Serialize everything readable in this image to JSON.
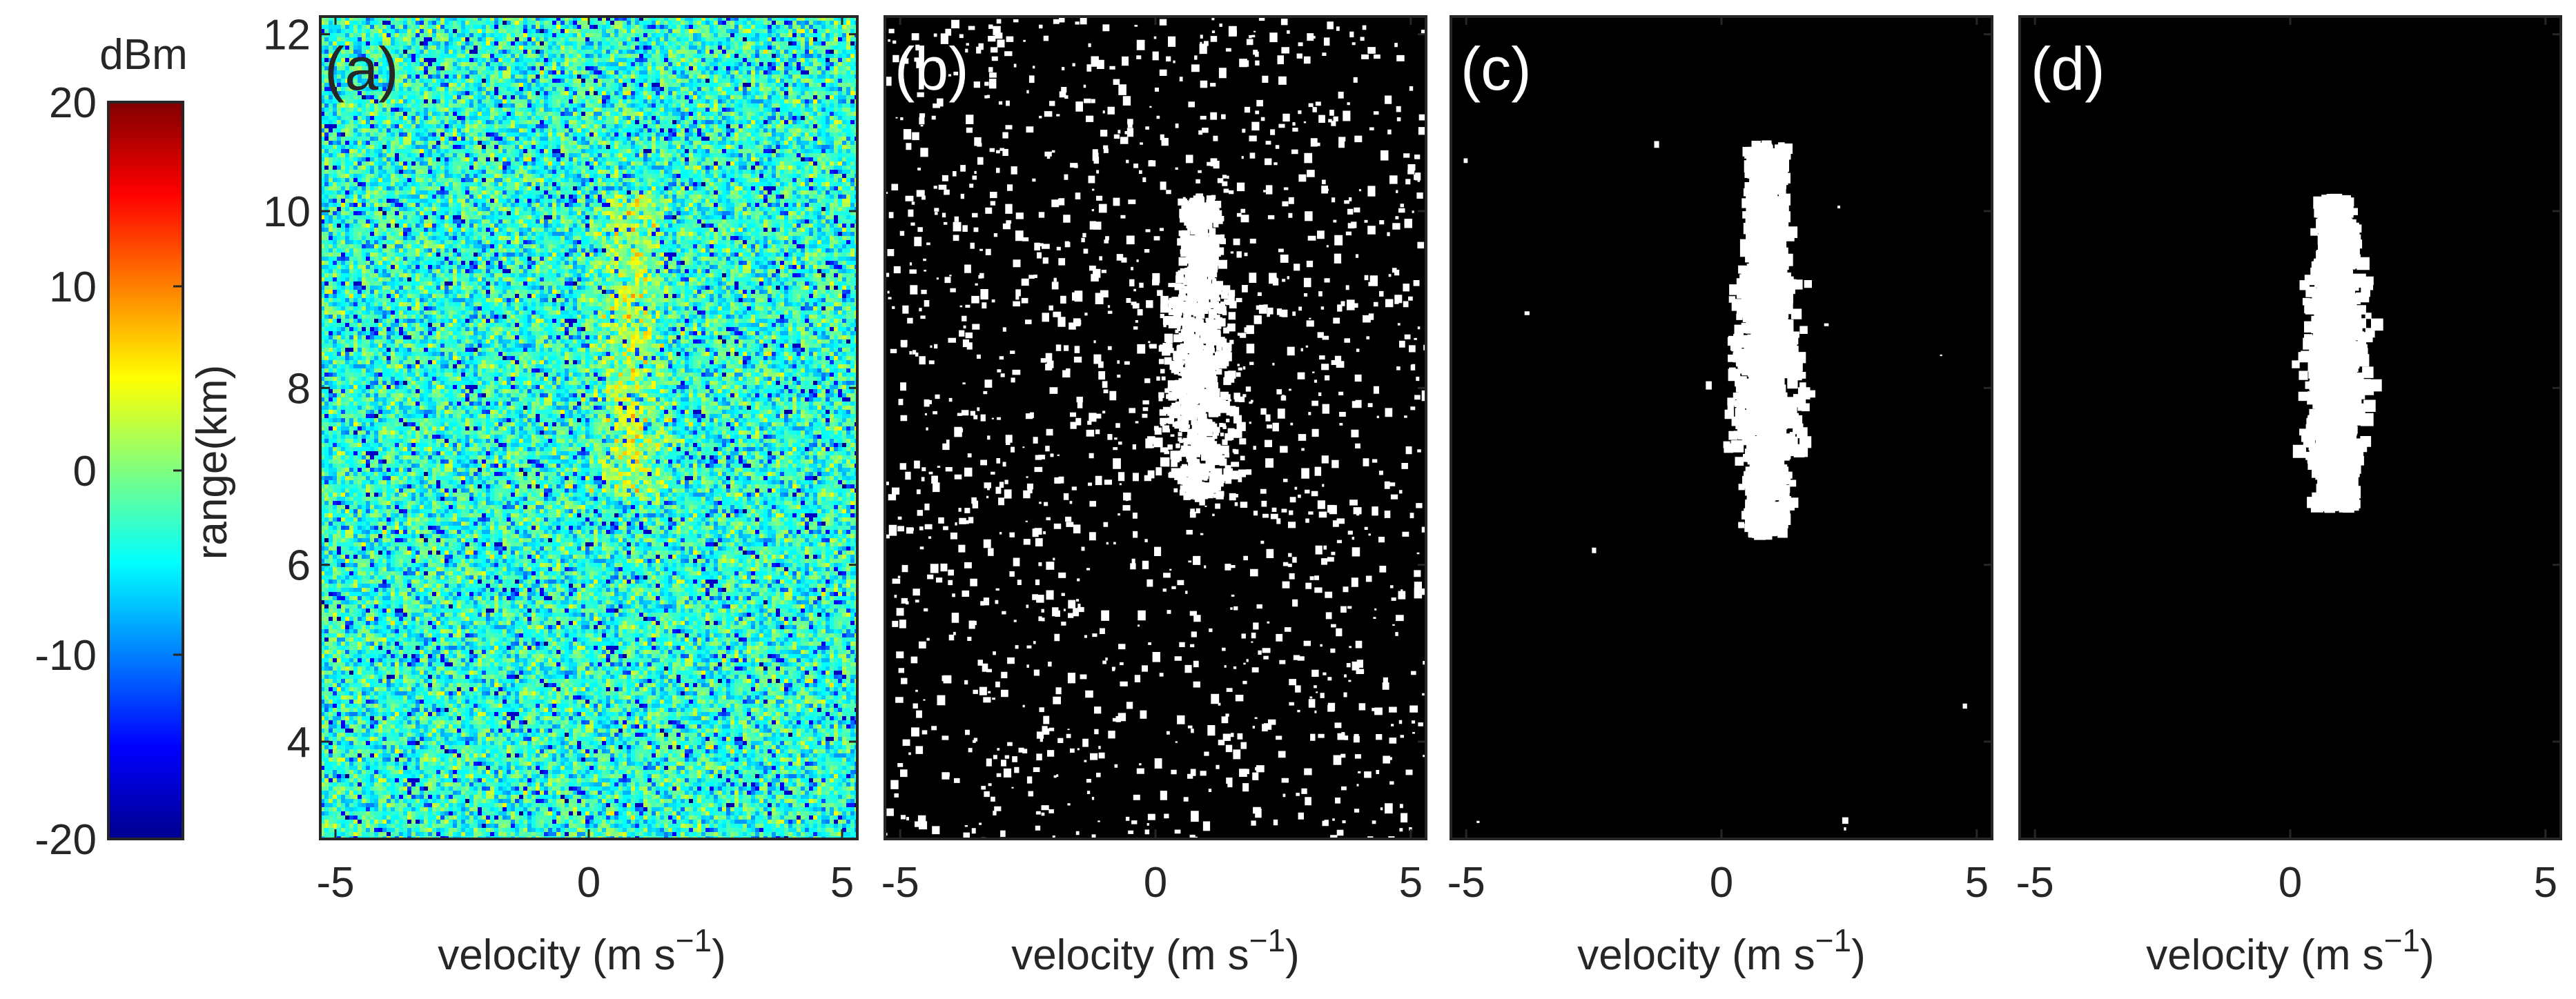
{
  "colorbar": {
    "label": "dBm",
    "ticks": [
      20,
      10,
      0,
      -10,
      -20
    ],
    "tick_labels": [
      "20",
      "10",
      "0",
      "-10",
      "-20"
    ],
    "range": [
      -20,
      20
    ],
    "colormap": "jet"
  },
  "y_axis": {
    "label": "range(km)",
    "ticks": [
      4,
      6,
      8,
      10,
      12
    ],
    "tick_labels": [
      "4",
      "6",
      "8",
      "10",
      "12"
    ],
    "range": [
      2.9,
      12.2
    ]
  },
  "x_axis": {
    "label_main": "velocity (m s",
    "label_exp": "−1",
    "label_close": ")",
    "ticks": [
      -5,
      0,
      5
    ],
    "tick_labels": [
      "-5",
      "0",
      "5"
    ],
    "range": [
      -5.3,
      5.3
    ]
  },
  "chart_data": [
    {
      "type": "heatmap",
      "panel": "(a)",
      "description_values": {
        "background_level_dBm": -3,
        "target_level_dBm": 3,
        "target_velocity_center": 0.8,
        "target_range_extent_km": [
          6.8,
          10.2
        ]
      },
      "background": "#40c8a0"
    },
    {
      "type": "heatmap",
      "panel": "(b)",
      "binary": true,
      "target_velocity_center": 0.8,
      "target_range_extent_km": [
        6.8,
        10.2
      ],
      "background": "#000000",
      "foreground": "#ffffff"
    },
    {
      "type": "heatmap",
      "panel": "(c)",
      "binary": true,
      "target_velocity_center": 0.8,
      "target_range_extent_km": [
        6.4,
        10.8
      ],
      "background": "#000000",
      "foreground": "#ffffff"
    },
    {
      "type": "heatmap",
      "panel": "(d)",
      "binary": true,
      "target_velocity_center": 0.8,
      "target_range_extent_km": [
        6.7,
        10.2
      ],
      "background": "#000000",
      "foreground": "#ffffff"
    }
  ],
  "panels": [
    {
      "tag": "(a)"
    },
    {
      "tag": "(b)"
    },
    {
      "tag": "(c)"
    },
    {
      "tag": "(d)"
    }
  ]
}
